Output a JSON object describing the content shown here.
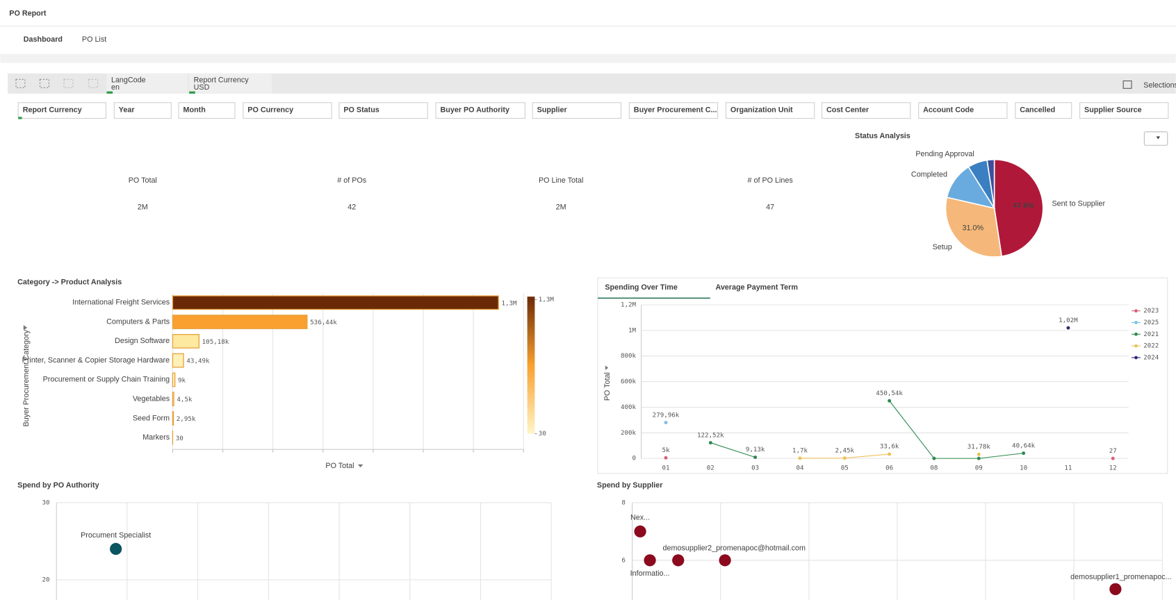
{
  "header": {
    "title": "PO Report"
  },
  "tabs": [
    "Dashboard",
    "PO List"
  ],
  "toolbar": {
    "fields": [
      {
        "label": "LangCode",
        "value": "en"
      },
      {
        "label": "Report Currency",
        "value": "USD"
      }
    ],
    "selections": "Selections"
  },
  "filters": [
    "Report Currency",
    "Year",
    "Month",
    "PO Currency",
    "PO Status",
    "Buyer PO Authority",
    "Supplier",
    "Buyer Procurement C...",
    "Organization Unit",
    "Cost Center",
    "Account Code",
    "Cancelled",
    "Supplier Source"
  ],
  "kpis": [
    {
      "label": "PO Total",
      "value": "2M",
      "color": "#7a7a7a"
    },
    {
      "label": "# of POs",
      "value": 42,
      "color": "#c77a1f"
    },
    {
      "label": "PO Line Total",
      "value": "2M",
      "color": "#3f6f9f"
    },
    {
      "label": "# of PO Lines",
      "value": 47,
      "color": "#6a6a6a"
    }
  ],
  "chart_data": [
    {
      "type": "pie",
      "title": "Status Analysis",
      "categories": [
        "Sent to Supplier",
        "Setup",
        "Completed",
        "Pending Approval",
        null
      ],
      "values": [
        47.6,
        31.0,
        12.5,
        6.5,
        2.4
      ],
      "value_labels": [
        "47.6%",
        "31.0%",
        null,
        null,
        null
      ],
      "colors": [
        "#b0183a",
        "#f5b87a",
        "#6aabdf",
        "#3a7fc1",
        "#3d4f9a"
      ]
    },
    {
      "type": "hbar",
      "title": "Category -> Product Analysis",
      "x_label": "PO Total",
      "y_label": "Buyer Procurement Category",
      "categories": [
        "International Freight Services",
        "Computers & Parts",
        "Design Software",
        "Printer, Scanner & Copier  Storage Hardware",
        "Procurement or Supply Chain Training",
        "Vegetables",
        "Seed Form",
        "Markers"
      ],
      "values": [
        1300000,
        536440,
        105180,
        43490,
        9000,
        4500,
        2950,
        30
      ],
      "value_labels": [
        "1,3M",
        "536,44k",
        "105,18k",
        "43,49k",
        "9k",
        "4,5k",
        "2,95k",
        "30"
      ],
      "colors": [
        "#6b2a07",
        "#f9a030",
        "#fde9a0",
        "#fdf0b8",
        "#fdf2c0",
        "#fdf3c4",
        "#fdf3c4",
        "#fff5c8"
      ],
      "xlim": [
        0,
        1400000
      ],
      "xticks": [
        0,
        200000,
        400000,
        600000,
        800000,
        1000000,
        1200000,
        1400000
      ],
      "xtick_labels": false,
      "grid": true,
      "colorbar_colors": [
        "#6b2a07",
        "#f9a030",
        "#fff5c8"
      ],
      "colorbar_ticks": [
        {
          "value": 1300000,
          "label": "1,3M"
        },
        30
      ]
    },
    {
      "type": "line",
      "tabs": [
        "Spending Over Time",
        "Average Payment Term"
      ],
      "y_label": "PO Total",
      "categories": [
        "01",
        "02",
        "03",
        "04",
        "05",
        "06",
        "08",
        "09",
        "10",
        "11",
        "12"
      ],
      "series": [
        {
          "name": "2023",
          "color": "#d9607a",
          "values": [
            5000,
            null,
            null,
            null,
            null,
            null,
            null,
            null,
            null,
            null,
            27
          ],
          "value_labels": [
            "5k",
            null,
            null,
            null,
            null,
            null,
            null,
            null,
            null,
            null,
            "27"
          ]
        },
        {
          "name": "2025",
          "color": "#7cc0e8",
          "values": [
            279960,
            null,
            null,
            null,
            null,
            null,
            null,
            null,
            null,
            null,
            null
          ],
          "value_labels": [
            "279,96k",
            null,
            null,
            null,
            null,
            null,
            null,
            null,
            null,
            null,
            null
          ]
        },
        {
          "name": "2021",
          "color": "#2b8a4f",
          "values": [
            null,
            122520,
            9130,
            null,
            null,
            450540,
            0,
            0,
            40640,
            null,
            null
          ],
          "value_labels": [
            null,
            "122,52k",
            "9,13k",
            null,
            null,
            "450,54k",
            null,
            null,
            "40,64k",
            null,
            null
          ]
        },
        {
          "name": "2022",
          "color": "#f0c05a",
          "values": [
            null,
            null,
            null,
            1700,
            2450,
            33600,
            null,
            31780,
            null,
            null,
            null
          ],
          "value_labels": [
            null,
            null,
            null,
            "1,7k",
            "2,45k",
            "33,6k",
            null,
            "31,78k",
            null,
            null,
            null
          ]
        },
        {
          "name": "2024",
          "color": "#2a2a7a",
          "values": [
            null,
            null,
            null,
            null,
            null,
            null,
            null,
            null,
            null,
            1020000,
            null
          ],
          "value_labels": [
            null,
            null,
            null,
            null,
            null,
            null,
            null,
            null,
            null,
            "1,02M",
            null
          ]
        }
      ],
      "ylim": [
        0,
        1200000
      ],
      "yticks": [
        0,
        {
          "value": 200000,
          "label": "200k"
        },
        {
          "value": 400000,
          "label": "400k"
        },
        {
          "value": 600000,
          "label": "600k"
        },
        {
          "value": 800000,
          "label": "800k"
        },
        {
          "value": 1000000,
          "label": "1M"
        },
        {
          "value": 1200000,
          "label": "1,2M"
        }
      ],
      "grid": true,
      "legend": "right"
    },
    {
      "type": "scatter",
      "title": "Spend by PO Authority",
      "labels": [
        "Procument Specialist"
      ],
      "x": [
        0.84
      ],
      "values": [
        24
      ],
      "color": "#0b5560",
      "xlim": [
        0,
        7
      ],
      "xticks": [
        1,
        2,
        3,
        4,
        5,
        6,
        7
      ],
      "ylim": [
        18,
        30
      ],
      "yticks": [
        20,
        30
      ],
      "grid": true
    },
    {
      "type": "scatter",
      "title": "Spend by Supplier",
      "labels": [
        "Nex...",
        "Informatio...",
        null,
        "demosupplier2_promenapoc@hotmail.com",
        "demosupplier1_promenapoc..."
      ],
      "x": [
        0.09,
        0.2,
        0.52,
        1.05,
        5.47
      ],
      "values": [
        7,
        6,
        6,
        6,
        5
      ],
      "color": "#8b0a1e",
      "xlim": [
        0,
        6
      ],
      "xticks": [
        1,
        2,
        3,
        4,
        5,
        6
      ],
      "ylim": [
        4.6,
        8
      ],
      "yticks": [
        6,
        8
      ],
      "grid": true
    }
  ]
}
